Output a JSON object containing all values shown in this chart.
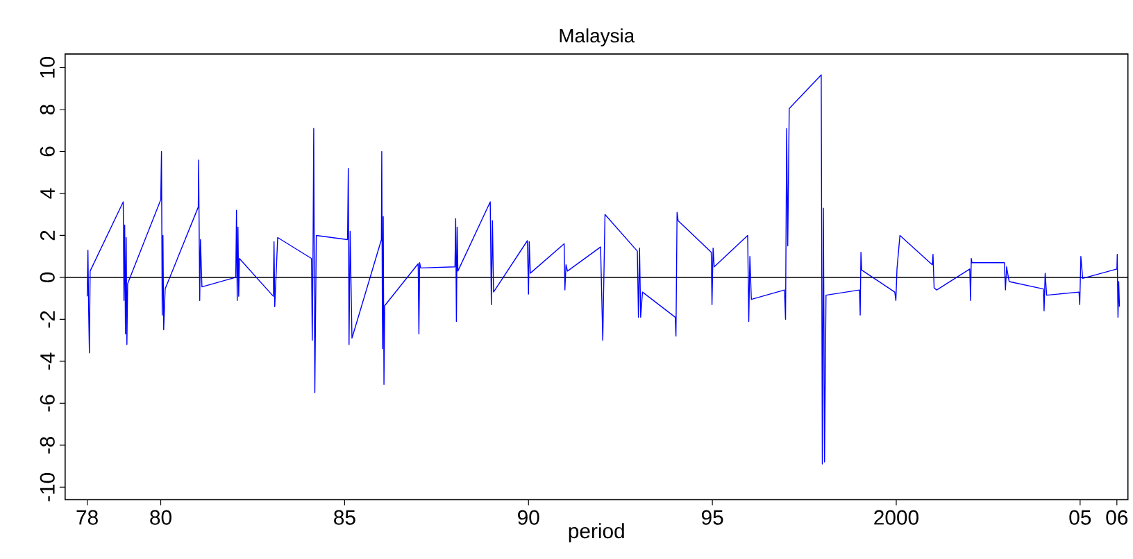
{
  "chart_data": {
    "type": "line",
    "title": "Malaysia",
    "xlabel": "period",
    "color": "#0000ff",
    "line_style": "solid",
    "marker": "none",
    "grid": false,
    "x": [
      1978.0,
      1978.02,
      1978.04,
      1978.06,
      1978.08,
      1978.98,
      1979.0,
      1979.02,
      1979.04,
      1979.06,
      1979.08,
      1979.1,
      1980.0,
      1980.02,
      1980.04,
      1980.06,
      1980.08,
      1980.12,
      1981.02,
      1981.03,
      1981.06,
      1981.08,
      1981.12,
      1982.04,
      1982.06,
      1982.08,
      1982.1,
      1982.12,
      1982.14,
      1983.06,
      1983.08,
      1983.1,
      1983.18,
      1984.1,
      1984.12,
      1984.14,
      1984.16,
      1984.19,
      1984.23,
      1985.08,
      1985.1,
      1985.12,
      1985.15,
      1985.2,
      1986.0,
      1986.01,
      1986.03,
      1986.05,
      1986.07,
      1986.09,
      1987.0,
      1987.02,
      1987.04,
      1987.07,
      1988.0,
      1988.02,
      1988.04,
      1988.06,
      1988.08,
      1988.96,
      1988.99,
      1989.02,
      1989.05,
      1989.97,
      1990.0,
      1990.02,
      1990.05,
      1990.97,
      1990.99,
      1991.02,
      1991.06,
      1991.96,
      1992.02,
      1992.08,
      1992.96,
      1992.99,
      1993.02,
      1993.05,
      1993.1,
      1993.99,
      1994.01,
      1994.04,
      1994.07,
      1994.97,
      1994.99,
      1995.02,
      1995.05,
      1995.96,
      1995.99,
      1996.02,
      1996.06,
      1996.96,
      1996.99,
      1997.02,
      1997.05,
      1997.09,
      1997.96,
      1997.99,
      1998.02,
      1998.05,
      1998.09,
      1999.0,
      1999.02,
      1999.04,
      1999.06,
      1999.96,
      1999.99,
      2000.02,
      2000.1,
      2000.98,
      2001.0,
      2001.03,
      2001.1,
      2002.0,
      2002.02,
      2002.04,
      2002.06,
      2002.94,
      2002.97,
      2003.0,
      2003.07,
      2004.0,
      2004.02,
      2004.05,
      2004.09,
      2004.97,
      2004.99,
      2005.02,
      2005.07,
      2006.0,
      2006.01,
      2006.03,
      2006.05,
      2006.07
    ],
    "values": [
      -0.9,
      1.3,
      -1.6,
      -3.6,
      0.3,
      3.6,
      -1.1,
      2.5,
      -2.7,
      1.9,
      -3.2,
      -0.3,
      3.7,
      6.0,
      -1.8,
      2.0,
      -2.5,
      -0.55,
      3.35,
      5.6,
      -1.1,
      1.8,
      -0.45,
      0.0,
      3.2,
      -1.1,
      2.4,
      -0.9,
      0.9,
      -0.9,
      1.7,
      -1.4,
      1.9,
      0.9,
      -3.0,
      0.8,
      7.1,
      -5.5,
      2.0,
      1.8,
      5.2,
      -3.2,
      2.2,
      -2.9,
      1.8,
      6.0,
      -3.4,
      2.9,
      -5.1,
      -1.35,
      0.65,
      -2.7,
      0.7,
      0.45,
      0.5,
      2.8,
      -2.1,
      2.4,
      0.3,
      3.6,
      -1.3,
      2.7,
      -0.7,
      1.75,
      -0.8,
      1.7,
      0.2,
      1.6,
      -0.6,
      0.6,
      0.3,
      1.45,
      -3.0,
      3.0,
      1.25,
      -1.9,
      1.4,
      -1.9,
      -0.7,
      -1.9,
      -2.8,
      3.1,
      2.7,
      1.2,
      -1.3,
      1.4,
      0.5,
      2.0,
      -2.1,
      1.0,
      -1.05,
      -0.6,
      -2.0,
      7.1,
      1.5,
      8.05,
      9.65,
      -8.9,
      3.3,
      -8.8,
      -0.85,
      -0.6,
      -1.8,
      1.2,
      0.35,
      -0.7,
      -1.1,
      0.4,
      2.0,
      0.6,
      1.1,
      -0.5,
      -0.6,
      0.4,
      -1.1,
      0.9,
      0.7,
      0.7,
      -0.6,
      0.5,
      -0.2,
      -0.55,
      -1.6,
      0.2,
      -0.85,
      -0.7,
      -1.3,
      1.0,
      -0.05,
      0.4,
      1.1,
      -1.9,
      -0.2,
      -1.4
    ],
    "xlim": [
      1977.4,
      2006.3
    ],
    "ylim": [
      -10.6,
      10.65
    ],
    "xticks": [
      {
        "value": 1978,
        "label": "78"
      },
      {
        "value": 1980,
        "label": "80"
      },
      {
        "value": 1985,
        "label": "85"
      },
      {
        "value": 1990,
        "label": "90"
      },
      {
        "value": 1995,
        "label": "95"
      },
      2000,
      {
        "value": 2005,
        "label": "05"
      },
      {
        "value": 2006,
        "label": "06"
      }
    ],
    "yticks": [
      -10,
      -8,
      -6,
      -4,
      -2,
      0,
      2,
      4,
      6,
      8,
      10
    ],
    "ref_lines": [
      {
        "axis": "y",
        "value": 0,
        "color": "#000000"
      }
    ]
  }
}
